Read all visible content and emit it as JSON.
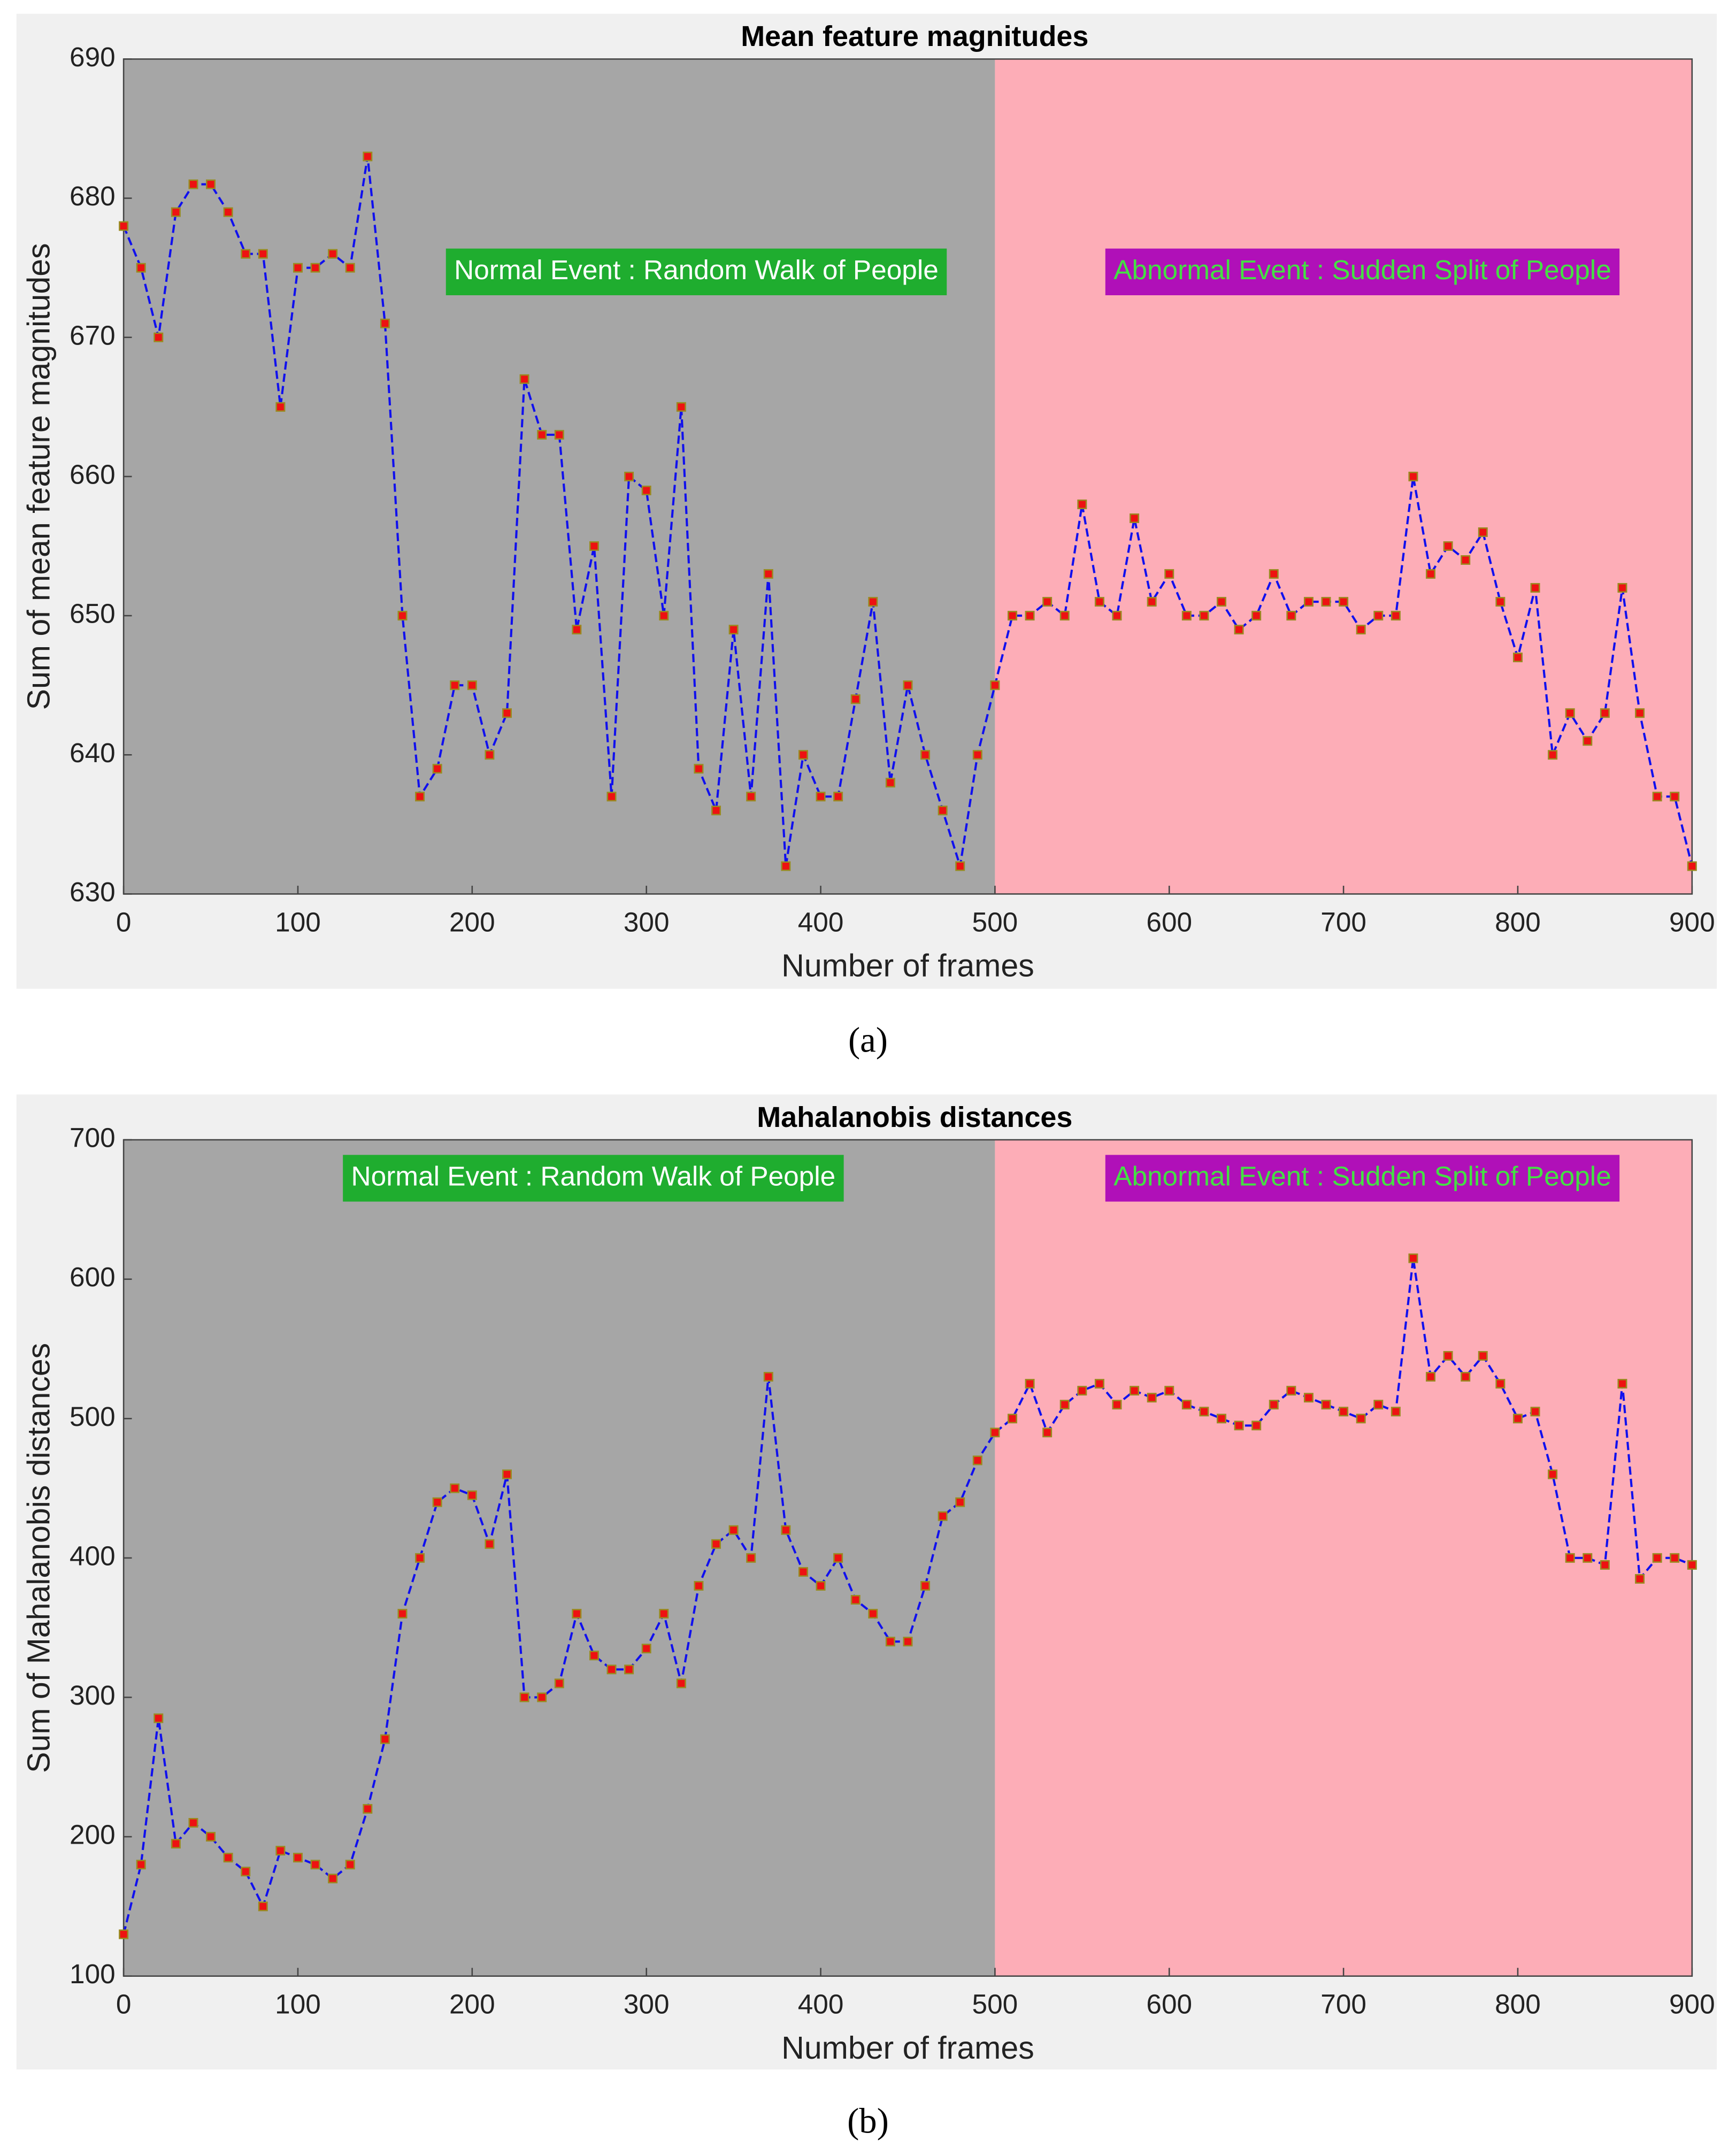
{
  "chart_data": [
    {
      "type": "line",
      "title": "Mean feature magnitudes",
      "x_label": "Number of frames",
      "y_label": "Sum of mean feature magnitudes",
      "panel_label": "(a)",
      "xlim": [
        0,
        900
      ],
      "xticks": [
        0,
        100,
        200,
        300,
        400,
        500,
        600,
        700,
        800,
        900
      ],
      "ylim": [
        630,
        690
      ],
      "yticks": [
        630,
        640,
        650,
        660,
        670,
        680,
        690
      ],
      "regions": [
        {
          "xlim": [
            0,
            500
          ],
          "color": "#a6a6a6"
        },
        {
          "xlim": [
            500,
            900
          ],
          "color": "#fdadb7"
        }
      ],
      "annotations": [
        {
          "text": "Normal Event : Random Walk of People",
          "background": "#1fad2f",
          "color": "#ffffff"
        },
        {
          "text": "Abnormal Event : Sudden Split of People",
          "background": "#b010b8",
          "color": "#44e044"
        }
      ],
      "x": [
        0,
        10,
        20,
        30,
        40,
        50,
        60,
        70,
        80,
        90,
        100,
        110,
        120,
        130,
        140,
        150,
        160,
        170,
        180,
        190,
        200,
        210,
        220,
        230,
        240,
        250,
        260,
        270,
        280,
        290,
        300,
        310,
        320,
        330,
        340,
        350,
        360,
        370,
        380,
        390,
        400,
        410,
        420,
        430,
        440,
        450,
        460,
        470,
        480,
        490,
        500,
        510,
        520,
        530,
        540,
        550,
        560,
        570,
        580,
        590,
        600,
        610,
        620,
        630,
        640,
        650,
        660,
        670,
        680,
        690,
        700,
        710,
        720,
        730,
        740,
        750,
        760,
        770,
        780,
        790,
        800,
        810,
        820,
        830,
        840,
        850,
        860,
        870,
        880,
        890,
        900
      ],
      "series": [
        {
          "line_color": "#1010ee",
          "marker_color": "#ee1111",
          "marker_edge": "#9a8a20",
          "values": [
            678,
            675,
            670,
            679,
            681,
            681,
            679,
            676,
            676,
            665,
            675,
            675,
            676,
            675,
            683,
            671,
            650,
            637,
            639,
            645,
            645,
            640,
            643,
            667,
            663,
            663,
            649,
            655,
            637,
            660,
            659,
            650,
            665,
            639,
            636,
            649,
            637,
            653,
            632,
            640,
            637,
            637,
            644,
            651,
            638,
            645,
            640,
            636,
            632,
            640,
            645,
            650,
            650,
            651,
            650,
            658,
            651,
            650,
            657,
            651,
            653,
            650,
            650,
            651,
            649,
            650,
            653,
            650,
            651,
            651,
            651,
            649,
            650,
            650,
            660,
            653,
            655,
            654,
            656,
            651,
            647,
            652,
            640,
            643,
            641,
            643,
            652,
            643,
            637,
            637,
            632
          ]
        }
      ]
    },
    {
      "type": "line",
      "title": "Mahalanobis distances",
      "x_label": "Number of frames",
      "y_label": "Sum of Mahalanobis distances",
      "panel_label": "(b)",
      "xlim": [
        0,
        900
      ],
      "xticks": [
        0,
        100,
        200,
        300,
        400,
        500,
        600,
        700,
        800,
        900
      ],
      "ylim": [
        100,
        700
      ],
      "yticks": [
        100,
        200,
        300,
        400,
        500,
        600,
        700
      ],
      "regions": [
        {
          "xlim": [
            0,
            500
          ],
          "color": "#a6a6a6"
        },
        {
          "xlim": [
            500,
            900
          ],
          "color": "#fdadb7"
        }
      ],
      "annotations": [
        {
          "text": "Normal Event : Random Walk of People",
          "background": "#1fad2f",
          "color": "#ffffff"
        },
        {
          "text": "Abnormal Event : Sudden Split of People",
          "background": "#b010b8",
          "color": "#44e044"
        }
      ],
      "x": [
        0,
        10,
        20,
        30,
        40,
        50,
        60,
        70,
        80,
        90,
        100,
        110,
        120,
        130,
        140,
        150,
        160,
        170,
        180,
        190,
        200,
        210,
        220,
        230,
        240,
        250,
        260,
        270,
        280,
        290,
        300,
        310,
        320,
        330,
        340,
        350,
        360,
        370,
        380,
        390,
        400,
        410,
        420,
        430,
        440,
        450,
        460,
        470,
        480,
        490,
        500,
        510,
        520,
        530,
        540,
        550,
        560,
        570,
        580,
        590,
        600,
        610,
        620,
        630,
        640,
        650,
        660,
        670,
        680,
        690,
        700,
        710,
        720,
        730,
        740,
        750,
        760,
        770,
        780,
        790,
        800,
        810,
        820,
        830,
        840,
        850,
        860,
        870,
        880,
        890,
        900
      ],
      "series": [
        {
          "line_color": "#1010ee",
          "marker_color": "#ee1111",
          "marker_edge": "#9a8a20",
          "values": [
            130,
            180,
            285,
            195,
            210,
            200,
            185,
            175,
            150,
            190,
            185,
            180,
            170,
            180,
            220,
            270,
            360,
            400,
            440,
            450,
            445,
            410,
            460,
            300,
            300,
            310,
            360,
            330,
            320,
            320,
            335,
            360,
            310,
            380,
            410,
            420,
            400,
            530,
            420,
            390,
            380,
            400,
            370,
            360,
            340,
            340,
            380,
            430,
            440,
            470,
            490,
            500,
            525,
            490,
            510,
            520,
            525,
            510,
            520,
            515,
            520,
            510,
            505,
            500,
            495,
            495,
            510,
            520,
            515,
            510,
            505,
            500,
            510,
            505,
            615,
            530,
            545,
            530,
            545,
            525,
            500,
            505,
            460,
            400,
            400,
            395,
            525,
            385,
            400,
            400,
            395
          ]
        }
      ]
    }
  ]
}
